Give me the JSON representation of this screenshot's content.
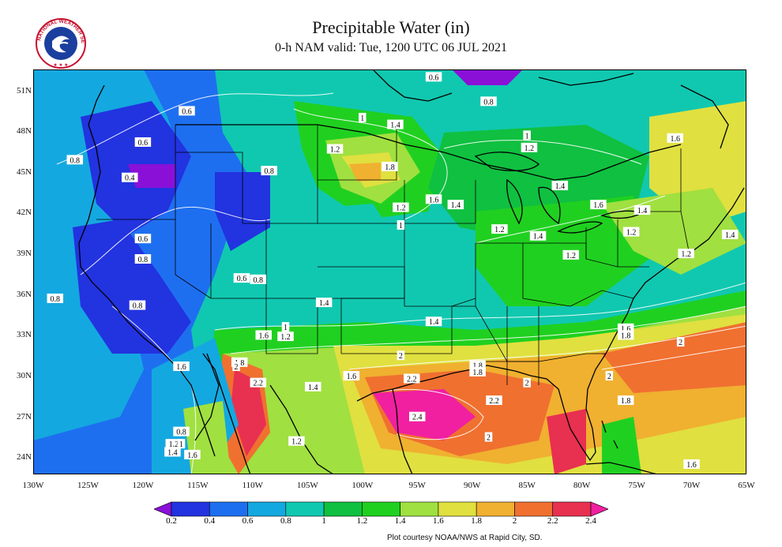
{
  "header": {
    "title": "Precipitable Water (in)",
    "subtitle": "0-h NAM valid: Tue, 1200 UTC 06 JUL 2021"
  },
  "logo_text": "NATIONAL WEATHER SERVICE",
  "credit": "Plot courtesy NOAA/NWS at Rapid City, SD.",
  "axes": {
    "lat_labels": [
      "51N",
      "48N",
      "45N",
      "42N",
      "39N",
      "36N",
      "33N",
      "30N",
      "27N",
      "24N"
    ],
    "lon_labels": [
      "130W",
      "125W",
      "120W",
      "115W",
      "110W",
      "105W",
      "100W",
      "95W",
      "90W",
      "85W",
      "80W",
      "75W",
      "70W",
      "65W"
    ]
  },
  "colorbar": {
    "ticks": [
      "0.2",
      "0.4",
      "0.6",
      "0.8",
      "1",
      "1.2",
      "1.4",
      "1.6",
      "1.8",
      "2",
      "2.2",
      "2.4"
    ],
    "colors": [
      "#8a10d8",
      "#2233e0",
      "#1e6ff0",
      "#14a8e0",
      "#10c8b0",
      "#10c040",
      "#20d020",
      "#a0e040",
      "#e0e040",
      "#f0b030",
      "#f07030",
      "#e83050",
      "#f020a0"
    ]
  },
  "contour_labels": [
    {
      "text": "0.6",
      "lon": -93.5,
      "lat": 52.0
    },
    {
      "text": "0.8",
      "lon": -88.5,
      "lat": 50.2
    },
    {
      "text": "0.6",
      "lon": -116.0,
      "lat": 49.5
    },
    {
      "text": "1",
      "lon": -100.0,
      "lat": 49.0
    },
    {
      "text": "1.4",
      "lon": -97.0,
      "lat": 48.5
    },
    {
      "text": "1.2",
      "lon": -102.5,
      "lat": 46.7
    },
    {
      "text": "1.8",
      "lon": -97.5,
      "lat": 45.4
    },
    {
      "text": "0.6",
      "lon": -120.0,
      "lat": 47.2
    },
    {
      "text": "0.8",
      "lon": -126.2,
      "lat": 45.9
    },
    {
      "text": "0.4",
      "lon": -121.2,
      "lat": 44.6
    },
    {
      "text": "0.8",
      "lon": -108.5,
      "lat": 45.1
    },
    {
      "text": "1.6",
      "lon": -93.5,
      "lat": 43.0
    },
    {
      "text": "1.4",
      "lon": -91.5,
      "lat": 42.6
    },
    {
      "text": "1.2",
      "lon": -96.5,
      "lat": 42.4
    },
    {
      "text": "1",
      "lon": -96.5,
      "lat": 41.1
    },
    {
      "text": "1",
      "lon": -85.0,
      "lat": 47.7
    },
    {
      "text": "1.2",
      "lon": -84.8,
      "lat": 46.8
    },
    {
      "text": "1.4",
      "lon": -82.0,
      "lat": 44.0
    },
    {
      "text": "1.6",
      "lon": -78.5,
      "lat": 42.6
    },
    {
      "text": "1.4",
      "lon": -74.5,
      "lat": 42.2
    },
    {
      "text": "1.6",
      "lon": -71.5,
      "lat": 47.5
    },
    {
      "text": "1.2",
      "lon": -87.5,
      "lat": 40.8
    },
    {
      "text": "1.4",
      "lon": -84.0,
      "lat": 40.3
    },
    {
      "text": "1.2",
      "lon": -81.0,
      "lat": 38.9
    },
    {
      "text": "1.2",
      "lon": -75.5,
      "lat": 40.6
    },
    {
      "text": "1.2",
      "lon": -70.5,
      "lat": 39.0
    },
    {
      "text": "1.4",
      "lon": -66.5,
      "lat": 40.4
    },
    {
      "text": "0.6",
      "lon": -120.0,
      "lat": 40.1
    },
    {
      "text": "0.8",
      "lon": -120.0,
      "lat": 38.6
    },
    {
      "text": "0.6",
      "lon": -111.0,
      "lat": 37.2
    },
    {
      "text": "0.8",
      "lon": -109.5,
      "lat": 37.1
    },
    {
      "text": "0.8",
      "lon": -128.0,
      "lat": 35.7
    },
    {
      "text": "0.8",
      "lon": -120.5,
      "lat": 35.2
    },
    {
      "text": "1.4",
      "lon": -103.5,
      "lat": 35.4
    },
    {
      "text": "1",
      "lon": -107.0,
      "lat": 33.6
    },
    {
      "text": "1.6",
      "lon": -109.0,
      "lat": 33.0
    },
    {
      "text": "1.2",
      "lon": -107.0,
      "lat": 32.9
    },
    {
      "text": "1.4",
      "lon": -93.5,
      "lat": 34.0
    },
    {
      "text": "1.6",
      "lon": -116.5,
      "lat": 30.7
    },
    {
      "text": "1.8",
      "lon": -111.2,
      "lat": 31.0
    },
    {
      "text": "2",
      "lon": -111.5,
      "lat": 30.7
    },
    {
      "text": "2.2",
      "lon": -109.5,
      "lat": 29.5
    },
    {
      "text": "1.4",
      "lon": -104.5,
      "lat": 29.2
    },
    {
      "text": "1.6",
      "lon": -101.0,
      "lat": 30.0
    },
    {
      "text": "2",
      "lon": -96.5,
      "lat": 31.5
    },
    {
      "text": "2.2",
      "lon": -95.5,
      "lat": 29.8
    },
    {
      "text": "1.8",
      "lon": -89.5,
      "lat": 30.8
    },
    {
      "text": "1.8",
      "lon": -89.5,
      "lat": 30.3
    },
    {
      "text": "2",
      "lon": -85.0,
      "lat": 29.5
    },
    {
      "text": "2.2",
      "lon": -88.0,
      "lat": 28.2
    },
    {
      "text": "2.4",
      "lon": -95.0,
      "lat": 27.0
    },
    {
      "text": "2",
      "lon": -88.5,
      "lat": 25.5
    },
    {
      "text": "1.2",
      "lon": -106.0,
      "lat": 25.2
    },
    {
      "text": "0.8",
      "lon": -116.5,
      "lat": 25.9
    },
    {
      "text": "1.2",
      "lon": -117.2,
      "lat": 25.0
    },
    {
      "text": "1",
      "lon": -116.5,
      "lat": 25.0
    },
    {
      "text": "1.4",
      "lon": -117.3,
      "lat": 24.4
    },
    {
      "text": "1.6",
      "lon": -115.5,
      "lat": 24.2
    },
    {
      "text": "1.6",
      "lon": -76.0,
      "lat": 33.5
    },
    {
      "text": "1.8",
      "lon": -76.0,
      "lat": 33.0
    },
    {
      "text": "2",
      "lon": -71.0,
      "lat": 32.5
    },
    {
      "text": "2",
      "lon": -77.5,
      "lat": 30.0
    },
    {
      "text": "1.8",
      "lon": -76.0,
      "lat": 28.2
    },
    {
      "text": "1.6",
      "lon": -70.0,
      "lat": 23.5
    }
  ]
}
